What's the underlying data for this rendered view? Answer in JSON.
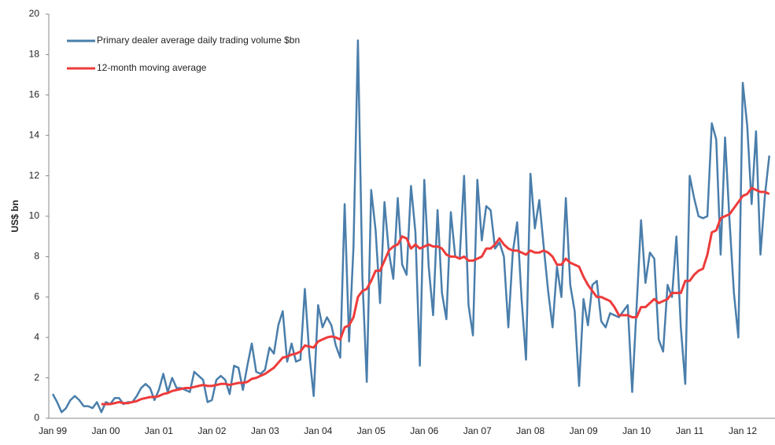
{
  "chart_data": {
    "type": "line",
    "y_label": "US$ bn",
    "categories": [
      "Jan 99",
      null,
      null,
      null,
      null,
      null,
      null,
      null,
      null,
      null,
      null,
      null,
      "Jan 00",
      null,
      null,
      null,
      null,
      null,
      null,
      null,
      null,
      null,
      null,
      null,
      "Jan 01",
      null,
      null,
      null,
      null,
      null,
      null,
      null,
      null,
      null,
      null,
      null,
      "Jan 02",
      null,
      null,
      null,
      null,
      null,
      null,
      null,
      null,
      null,
      null,
      null,
      "Jan 03",
      null,
      null,
      null,
      null,
      null,
      null,
      null,
      null,
      null,
      null,
      null,
      "Jan 04",
      null,
      null,
      null,
      null,
      null,
      null,
      null,
      null,
      null,
      null,
      null,
      "Jan 05",
      null,
      null,
      null,
      null,
      null,
      null,
      null,
      null,
      null,
      null,
      null,
      "Jan 06",
      null,
      null,
      null,
      null,
      null,
      null,
      null,
      null,
      null,
      null,
      null,
      "Jan 07",
      null,
      null,
      null,
      null,
      null,
      null,
      null,
      null,
      null,
      null,
      null,
      "Jan 08",
      null,
      null,
      null,
      null,
      null,
      null,
      null,
      null,
      null,
      null,
      null,
      "Jan 09",
      null,
      null,
      null,
      null,
      null,
      null,
      null,
      null,
      null,
      null,
      null,
      "Jan 10",
      null,
      null,
      null,
      null,
      null,
      null,
      null,
      null,
      null,
      null,
      null,
      "Jan 11",
      null,
      null,
      null,
      null,
      null,
      null,
      null,
      null,
      null,
      null,
      null,
      "Jan 12",
      null,
      null,
      null,
      null,
      null,
      null
    ],
    "series": [
      {
        "name": "Primary dealer average daily trading volume $bn",
        "color": "#4a7eab",
        "values": [
          1.2,
          0.8,
          0.3,
          0.5,
          0.9,
          1.1,
          0.9,
          0.6,
          0.6,
          0.5,
          0.8,
          0.3,
          0.8,
          0.7,
          1.0,
          1.0,
          0.7,
          0.8,
          0.8,
          1.1,
          1.5,
          1.7,
          1.5,
          0.9,
          1.4,
          2.2,
          1.3,
          2.0,
          1.5,
          1.5,
          1.4,
          1.3,
          2.3,
          2.1,
          1.9,
          0.8,
          0.9,
          1.9,
          2.1,
          1.9,
          1.2,
          2.6,
          2.5,
          1.4,
          2.6,
          3.7,
          2.3,
          2.2,
          2.4,
          3.5,
          3.2,
          4.6,
          5.3,
          2.8,
          3.7,
          2.8,
          2.9,
          6.4,
          3.2,
          1.1,
          5.6,
          4.5,
          5.0,
          4.6,
          3.6,
          3.0,
          10.6,
          3.8,
          8.5,
          18.7,
          7.0,
          1.8,
          11.3,
          9.3,
          5.7,
          10.7,
          8.2,
          6.9,
          10.9,
          7.6,
          7.1,
          11.5,
          9.2,
          2.6,
          11.8,
          7.5,
          5.1,
          10.3,
          6.2,
          4.9,
          10.2,
          8.0,
          7.9,
          12.0,
          5.6,
          4.1,
          11.8,
          8.8,
          10.5,
          10.3,
          8.4,
          8.7,
          8.0,
          4.5,
          8.2,
          9.7,
          5.9,
          2.9,
          12.1,
          9.4,
          10.8,
          8.5,
          6.3,
          4.5,
          7.5,
          6.0,
          10.9,
          6.6,
          5.3,
          1.6,
          5.9,
          4.6,
          6.6,
          6.8,
          4.8,
          4.5,
          5.2,
          5.1,
          5.0,
          5.3,
          5.6,
          1.3,
          5.5,
          9.8,
          6.7,
          8.2,
          7.9,
          3.9,
          3.3,
          6.6,
          6.0,
          9.0,
          4.5,
          1.7,
          12.0,
          10.9,
          10.0,
          9.9,
          10.0,
          14.6,
          13.8,
          8.1,
          13.9,
          9.8,
          6.2,
          4.0,
          16.6,
          14.5,
          10.6,
          14.2,
          8.1,
          11.0,
          13.0
        ]
      },
      {
        "name": "12-month moving average",
        "color": "#ee3b3b",
        "values": [
          null,
          null,
          null,
          null,
          null,
          null,
          null,
          null,
          null,
          null,
          null,
          0.7,
          0.7,
          0.7,
          0.75,
          0.8,
          0.75,
          0.75,
          0.8,
          0.85,
          0.95,
          1.0,
          1.05,
          1.05,
          1.1,
          1.2,
          1.25,
          1.35,
          1.4,
          1.45,
          1.5,
          1.5,
          1.55,
          1.6,
          1.65,
          1.6,
          1.6,
          1.65,
          1.7,
          1.7,
          1.65,
          1.7,
          1.75,
          1.75,
          1.8,
          1.95,
          2.0,
          2.1,
          2.2,
          2.35,
          2.5,
          2.75,
          3.0,
          3.05,
          3.15,
          3.2,
          3.3,
          3.6,
          3.55,
          3.5,
          3.8,
          3.9,
          4.0,
          4.05,
          4.0,
          3.9,
          4.5,
          4.6,
          5.0,
          6.0,
          6.3,
          6.4,
          6.8,
          7.3,
          7.3,
          7.8,
          8.3,
          8.5,
          8.6,
          9.0,
          8.9,
          8.4,
          8.6,
          8.4,
          8.5,
          8.6,
          8.5,
          8.5,
          8.4,
          8.1,
          8.0,
          8.0,
          7.9,
          8.0,
          7.8,
          7.8,
          7.9,
          8.0,
          8.4,
          8.4,
          8.6,
          8.9,
          8.6,
          8.4,
          8.3,
          8.3,
          8.2,
          8.1,
          8.3,
          8.2,
          8.2,
          8.3,
          8.2,
          8.0,
          7.6,
          7.6,
          7.9,
          7.7,
          7.6,
          7.5,
          7.0,
          6.6,
          6.3,
          6.0,
          6.0,
          5.9,
          5.8,
          5.5,
          5.1,
          5.1,
          5.1,
          5.0,
          5.0,
          5.5,
          5.5,
          5.7,
          5.9,
          5.7,
          5.8,
          5.9,
          6.2,
          6.2,
          6.2,
          6.8,
          6.8,
          7.1,
          7.3,
          7.4,
          8.1,
          9.2,
          9.3,
          9.9,
          10.0,
          10.1,
          10.4,
          10.7,
          11.0,
          11.1,
          11.4,
          11.3,
          11.2,
          11.2,
          11.1
        ]
      }
    ],
    "ylim": [
      0,
      20
    ],
    "yticks": [
      0,
      2,
      4,
      6,
      8,
      10,
      12,
      14,
      16,
      18,
      20
    ],
    "grid": false,
    "legend": "top-left"
  }
}
